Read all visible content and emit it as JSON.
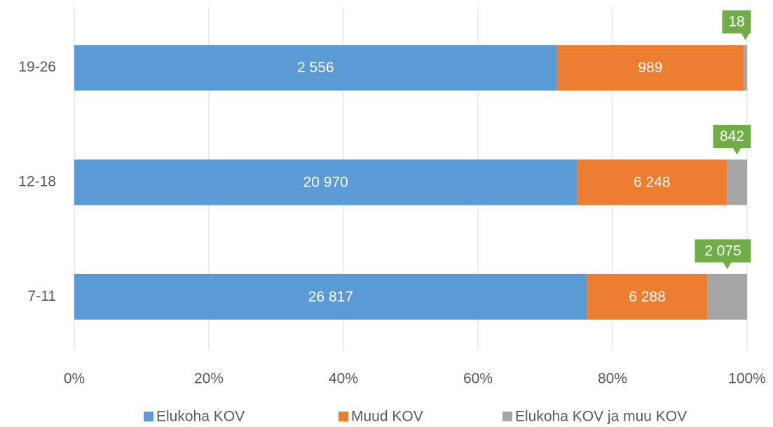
{
  "chart_data": {
    "type": "bar",
    "orientation": "horizontal",
    "stacking": "percent",
    "categories": [
      "19-26",
      "12-18",
      "7-11"
    ],
    "series": [
      {
        "name": "Elukoha KOV",
        "color": "#5b9bd5",
        "values": [
          2556,
          20970,
          26817
        ],
        "value_labels": [
          "2 556",
          "20 970",
          "26 817"
        ]
      },
      {
        "name": "Muud KOV",
        "color": "#ed7d31",
        "values": [
          989,
          6248,
          6288
        ],
        "value_labels": [
          "989",
          "6 248",
          "6 288"
        ]
      },
      {
        "name": "Elukoha KOV ja muu KOV",
        "color": "#a5a5a5",
        "values": [
          18,
          842,
          2075
        ],
        "value_labels": [
          "18",
          "842",
          "2 075"
        ],
        "label_color": "#70ad47"
      }
    ],
    "xlim": [
      0,
      100
    ],
    "xticks": [
      {
        "value": 0,
        "label": "0%"
      },
      {
        "value": 20,
        "label": "20%"
      },
      {
        "value": 40,
        "label": "40%"
      },
      {
        "value": 60,
        "label": "60%"
      },
      {
        "value": 80,
        "label": "80%"
      },
      {
        "value": 100,
        "label": "100%"
      }
    ],
    "grid": true,
    "legend": "bottom"
  }
}
